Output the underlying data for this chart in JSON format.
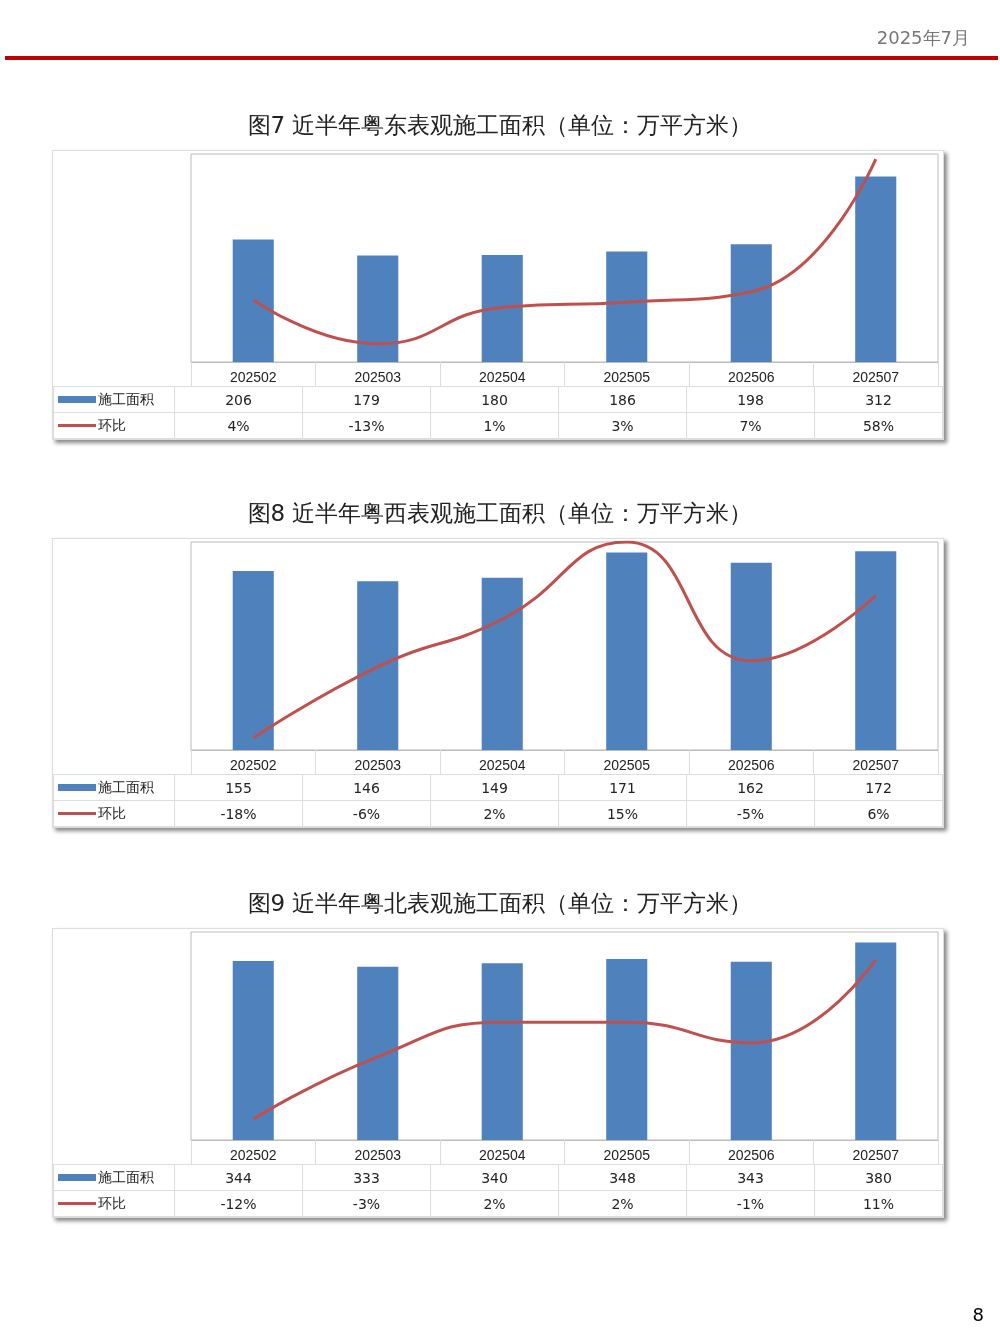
{
  "chart_data": [
    {
      "type": "bar",
      "title": "图7  近半年粤东表观施工面积（单位：万平方米）",
      "categories": [
        "202502",
        "202503",
        "202504",
        "202505",
        "202506",
        "202507"
      ],
      "legend": "bottom left",
      "marker": "none",
      "annotations": [
        "2025年7月"
      ],
      "series": [
        {
          "name": "施工面积",
          "color": "#4f81bd",
          "values": [
            206,
            179,
            180,
            186,
            198,
            312
          ],
          "value_labels": [
            "206",
            "179",
            "180",
            "186",
            "198",
            "312"
          ]
        },
        {
          "name": "环比",
          "type": "line",
          "axis": "y2",
          "color": "#c0504d",
          "values": [
            4,
            -13,
            1,
            3,
            7,
            58
          ],
          "value_labels": [
            "4%",
            "-13%",
            "1%",
            "3%",
            "7%",
            "58%"
          ]
        }
      ]
    },
    {
      "type": "bar",
      "title": "图8  近半年粤西表观施工面积（单位：万平方米）",
      "categories": [
        "202502",
        "202503",
        "202504",
        "202505",
        "202506",
        "202507"
      ],
      "legend": "bottom left",
      "marker": "none",
      "series": [
        {
          "name": "施工面积",
          "color": "#4f81bd",
          "values": [
            155,
            146,
            149,
            171,
            162,
            172
          ],
          "value_labels": [
            "155",
            "146",
            "149",
            "171",
            "162",
            "172"
          ]
        },
        {
          "name": "环比",
          "type": "line",
          "axis": "y2",
          "color": "#c0504d",
          "values": [
            -18,
            -6,
            2,
            15,
            -5,
            6
          ],
          "value_labels": [
            "-18%",
            "-6%",
            "2%",
            "15%",
            "-5%",
            "6%"
          ]
        }
      ]
    },
    {
      "type": "bar",
      "title": "图9  近半年粤北表观施工面积（单位：万平方米）",
      "categories": [
        "202502",
        "202503",
        "202504",
        "202505",
        "202506",
        "202507"
      ],
      "legend": "bottom left",
      "marker": "none",
      "annotations": [
        "8"
      ],
      "series": [
        {
          "name": "施工面积",
          "color": "#4f81bd",
          "values": [
            344,
            333,
            340,
            348,
            343,
            380
          ],
          "value_labels": [
            "344",
            "333",
            "340",
            "348",
            "343",
            "380"
          ]
        },
        {
          "name": "环比",
          "type": "line",
          "axis": "y2",
          "color": "#c0504d",
          "values": [
            -12,
            -3,
            2,
            2,
            -1,
            11
          ],
          "value_labels": [
            "-12%",
            "-3%",
            "2%",
            "2%",
            "-1%",
            "11%"
          ]
        }
      ]
    }
  ]
}
